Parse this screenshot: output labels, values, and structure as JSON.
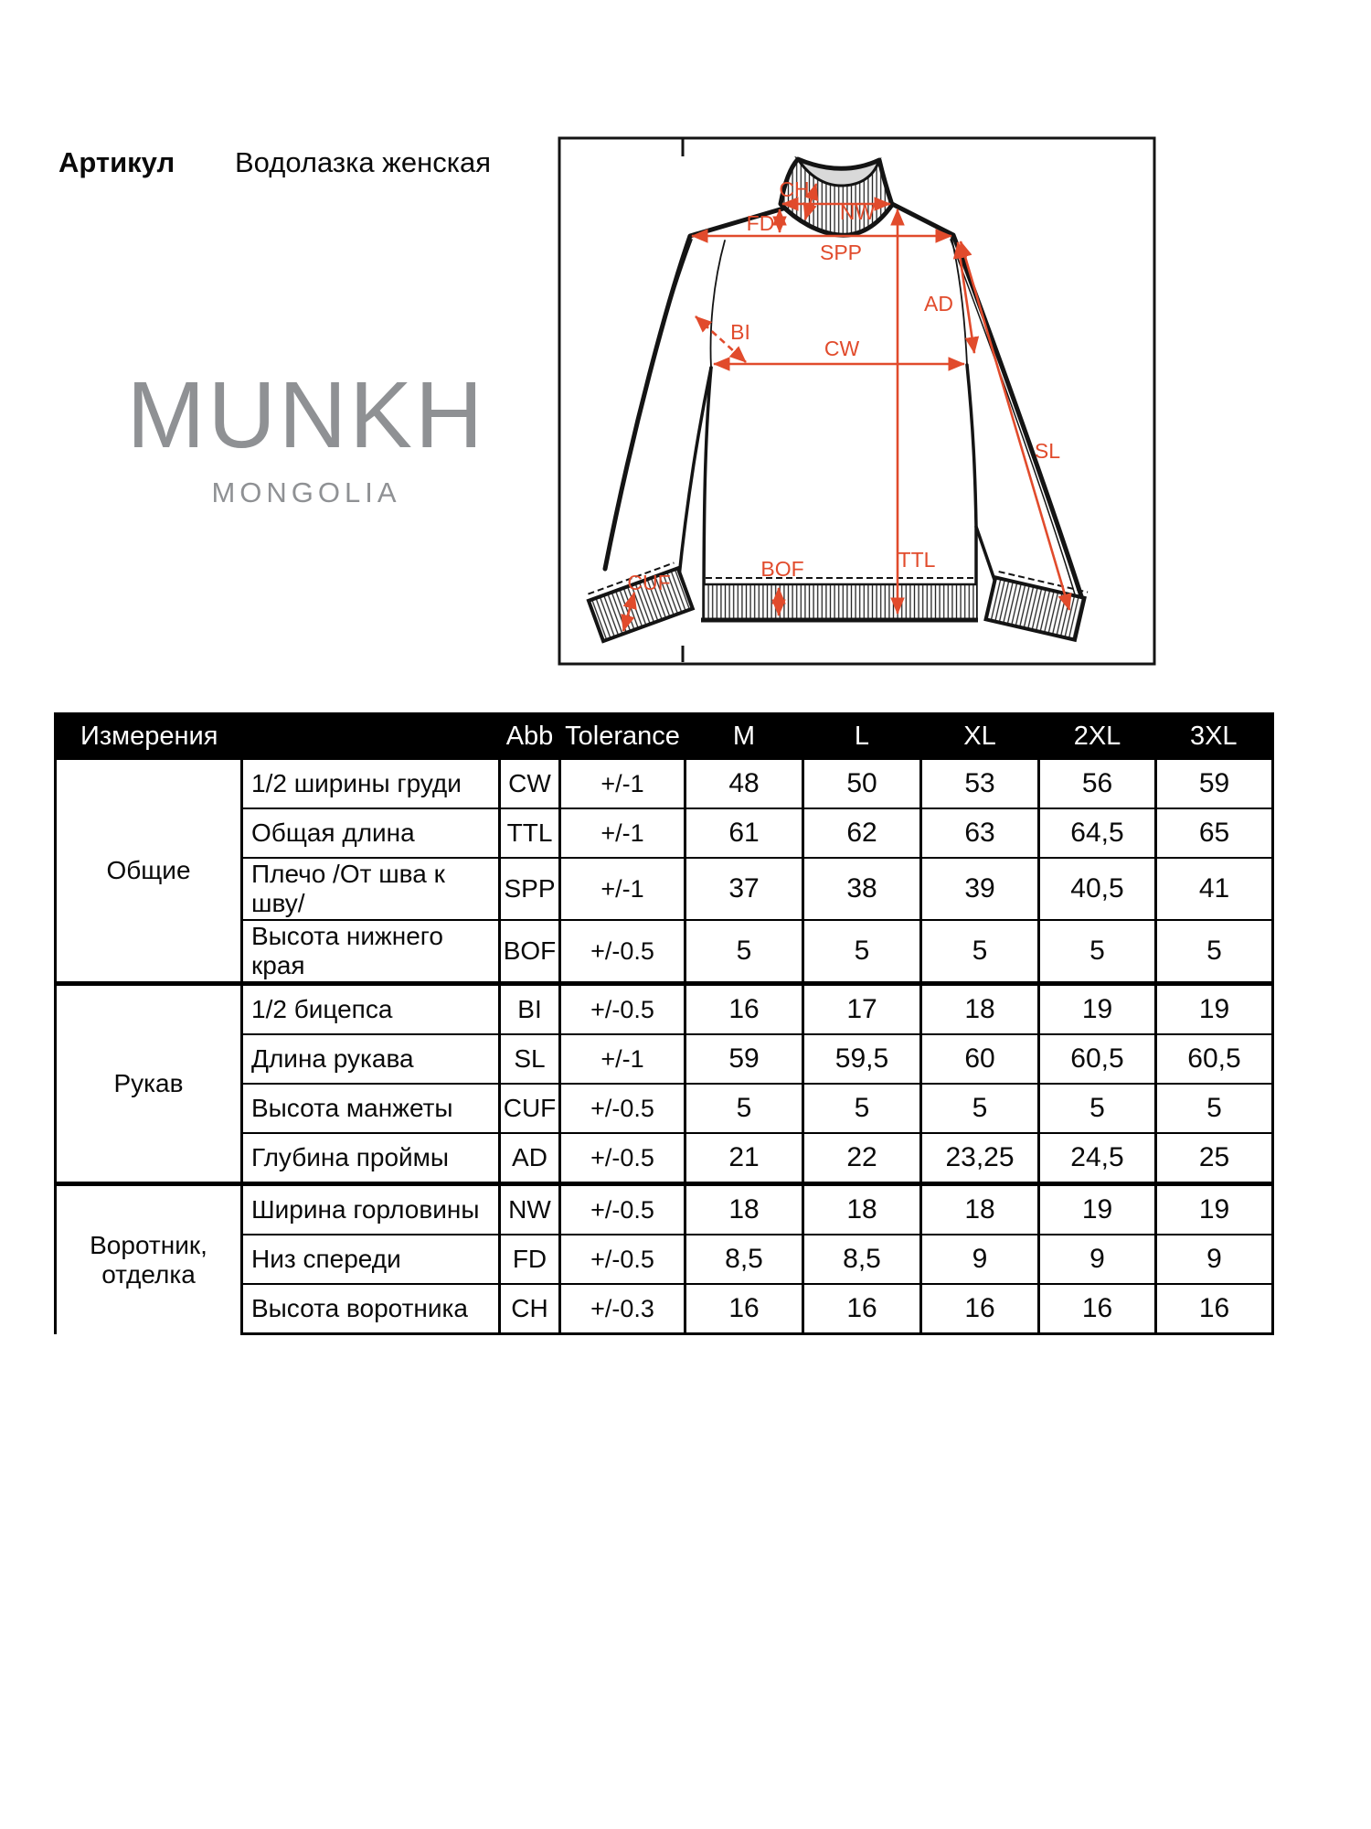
{
  "header": {
    "article_label": "Артикул",
    "article_value": "Водолазка женская"
  },
  "logo": {
    "brand": "MUNKH",
    "sub": "MONGOLIA",
    "color": "#8f9194"
  },
  "diagram": {
    "accent_color": "#e14b2c",
    "collar_fill": "#d9d9d9",
    "labels": {
      "ch": "CH",
      "nw": "NW",
      "fd": "FD",
      "spp": "SPP",
      "ad": "AD",
      "bi": "BI",
      "cw": "CW",
      "sl": "SL",
      "ttl": "TTL",
      "cuf": "CUF",
      "bof": "BOF"
    }
  },
  "table": {
    "header": {
      "measurements": "Измерения",
      "abb": "Abb",
      "tolerance": "Tolerance",
      "sizes": [
        "M",
        "L",
        "XL",
        "2XL",
        "3XL"
      ]
    },
    "groups": [
      {
        "name": "Общие",
        "rows": [
          {
            "label": "1/2 ширины груди",
            "abb": "CW",
            "tolerance": "+/-1",
            "values": [
              "48",
              "50",
              "53",
              "56",
              "59"
            ]
          },
          {
            "label": "Общая длина",
            "abb": "TTL",
            "tolerance": "+/-1",
            "values": [
              "61",
              "62",
              "63",
              "64,5",
              "65"
            ]
          },
          {
            "label": "Плечо /От шва к шву/",
            "abb": "SPP",
            "tolerance": "+/-1",
            "values": [
              "37",
              "38",
              "39",
              "40,5",
              "41"
            ]
          },
          {
            "label": "Высота нижнего края",
            "abb": "BOF",
            "tolerance": "+/-0.5",
            "values": [
              "5",
              "5",
              "5",
              "5",
              "5"
            ]
          }
        ]
      },
      {
        "name": "Рукав",
        "rows": [
          {
            "label": "1/2 бицепса",
            "abb": "BI",
            "tolerance": "+/-0.5",
            "values": [
              "16",
              "17",
              "18",
              "19",
              "19"
            ]
          },
          {
            "label": "Длина рукава",
            "abb": "SL",
            "tolerance": "+/-1",
            "values": [
              "59",
              "59,5",
              "60",
              "60,5",
              "60,5"
            ]
          },
          {
            "label": "Высота манжеты",
            "abb": "CUF",
            "tolerance": "+/-0.5",
            "values": [
              "5",
              "5",
              "5",
              "5",
              "5"
            ]
          },
          {
            "label": "Глубина проймы",
            "abb": "AD",
            "tolerance": "+/-0.5",
            "values": [
              "21",
              "22",
              "23,25",
              "24,5",
              "25"
            ]
          }
        ]
      },
      {
        "name": "Воротник, отделка",
        "rows": [
          {
            "label": "Ширина горловины",
            "abb": "NW",
            "tolerance": "+/-0.5",
            "values": [
              "18",
              "18",
              "18",
              "19",
              "19"
            ]
          },
          {
            "label": "Низ спереди",
            "abb": "FD",
            "tolerance": "+/-0.5",
            "values": [
              "8,5",
              "8,5",
              "9",
              "9",
              "9"
            ]
          },
          {
            "label": "Высота воротника",
            "abb": "CH",
            "tolerance": "+/-0.3",
            "values": [
              "16",
              "16",
              "16",
              "16",
              "16"
            ]
          }
        ]
      }
    ]
  }
}
